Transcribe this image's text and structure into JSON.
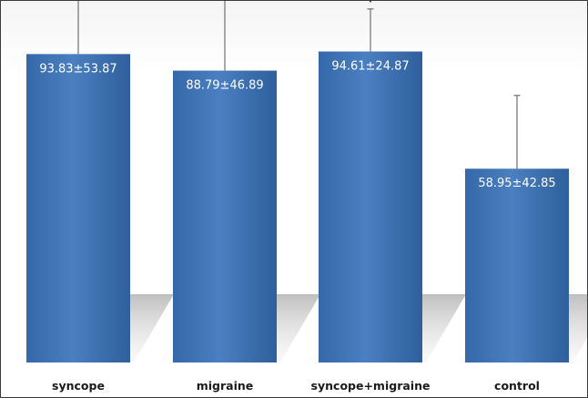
{
  "chart_data": {
    "type": "bar",
    "title": "",
    "xlabel": "",
    "ylabel": "",
    "categories": [
      "syncope",
      "migraine",
      "syncope+migraine",
      "control"
    ],
    "values": [
      93.83,
      88.79,
      94.61,
      58.95
    ],
    "errors": [
      53.87,
      46.89,
      24.87,
      42.85
    ],
    "data_labels": [
      "93.83±53.87",
      "88.79±46.89",
      "94.61±24.87",
      "58.95±42.85"
    ],
    "significance": [
      "*",
      "*",
      "*",
      ""
    ],
    "ylim": [
      0,
      110
    ],
    "grid": false,
    "legend": "none",
    "bar_color": "#3f73b4"
  }
}
